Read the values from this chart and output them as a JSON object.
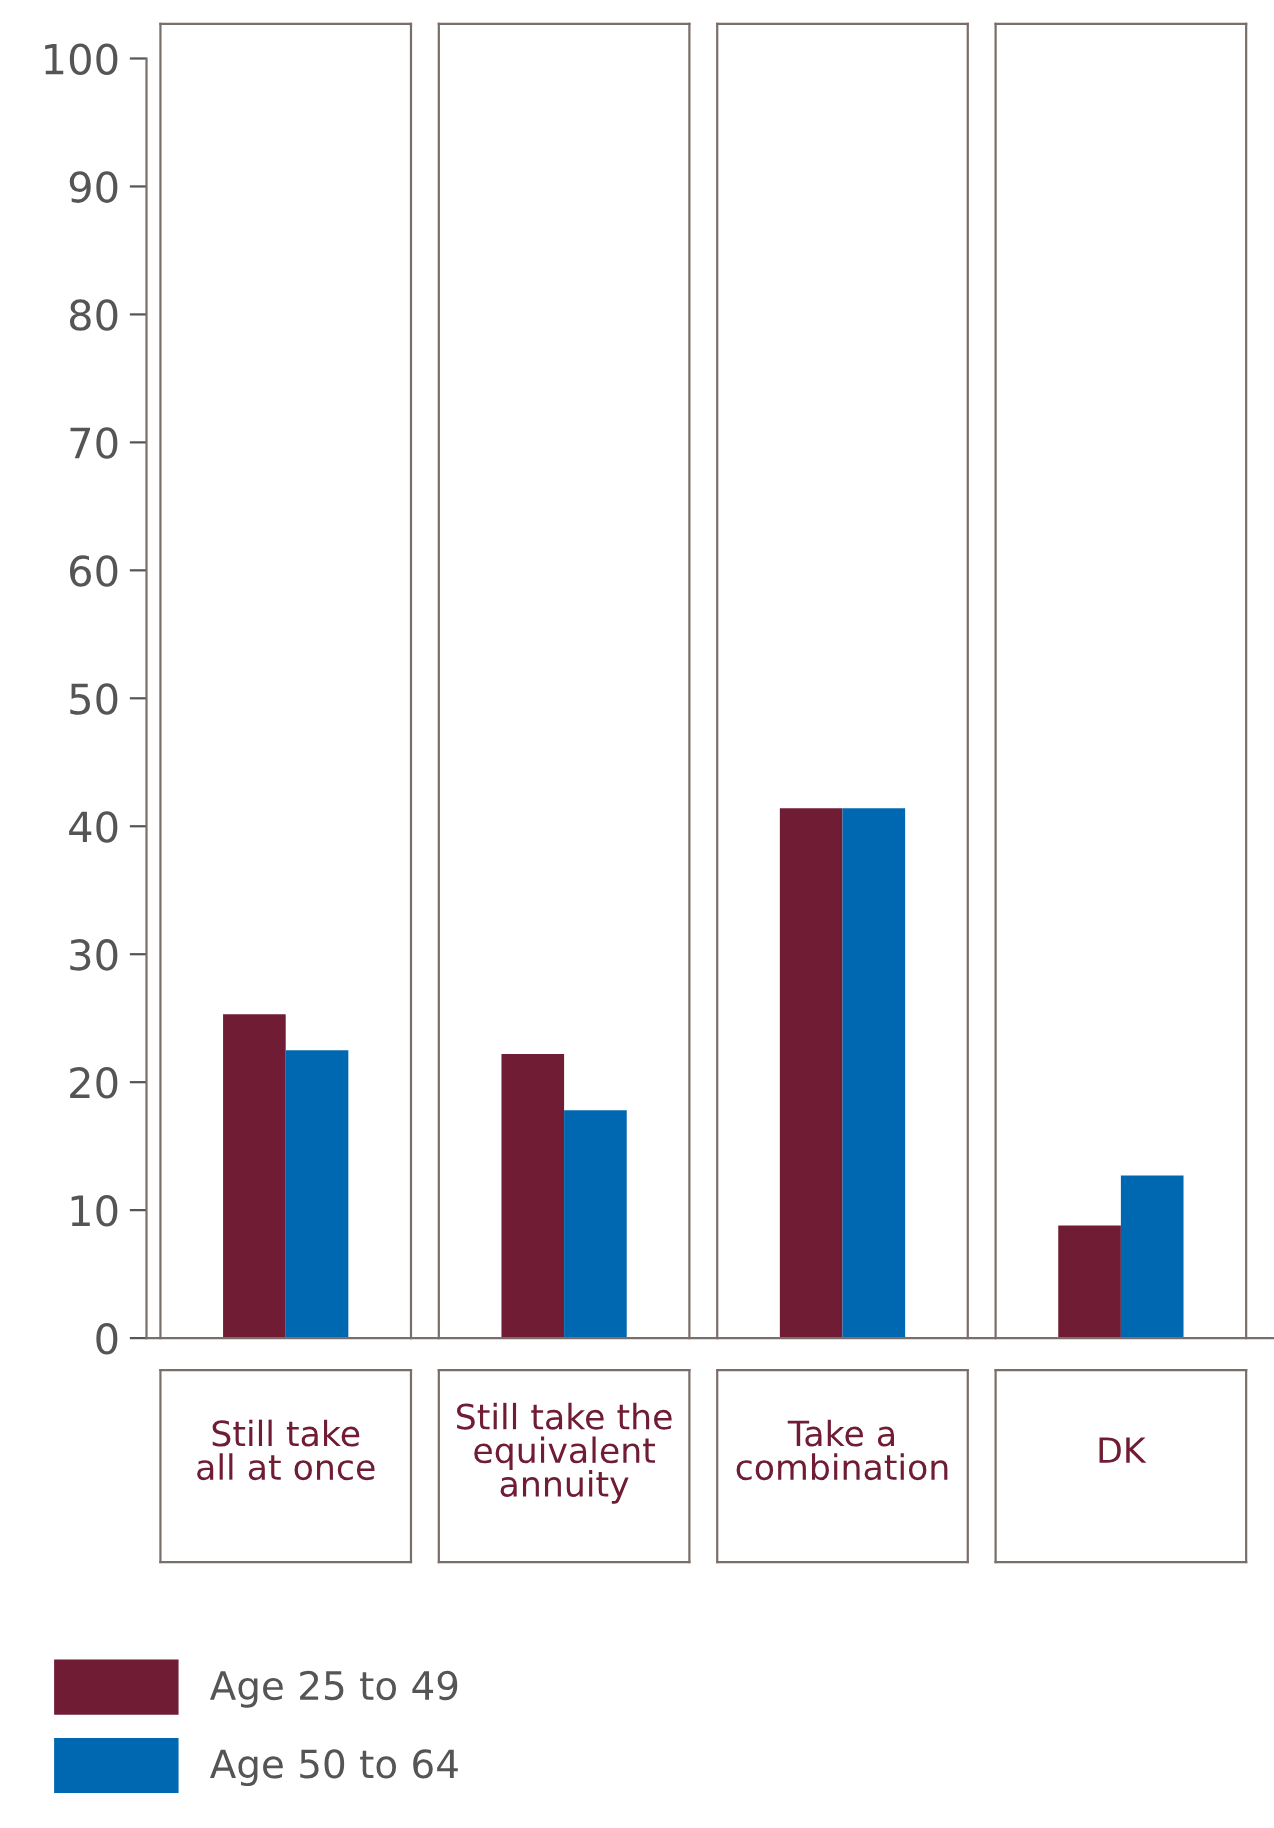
{
  "chart_data": {
    "type": "bar",
    "categories": [
      "Still take\nall at once",
      "Still take the\nequivalent\nannuity",
      "Take a\ncombination",
      "DK"
    ],
    "series": [
      {
        "name": "Age 25 to 49",
        "color": "#6f1c34",
        "values": [
          25.3,
          22.2,
          41.4,
          8.8
        ]
      },
      {
        "name": "Age 50 to 64",
        "color": "#0068b0",
        "values": [
          22.5,
          17.8,
          41.4,
          12.7
        ]
      }
    ],
    "ylim": [
      0,
      100
    ],
    "yticks": [
      0,
      10,
      20,
      30,
      40,
      50,
      60,
      70,
      80,
      90,
      100
    ],
    "grid": false,
    "legend": "bottom"
  }
}
